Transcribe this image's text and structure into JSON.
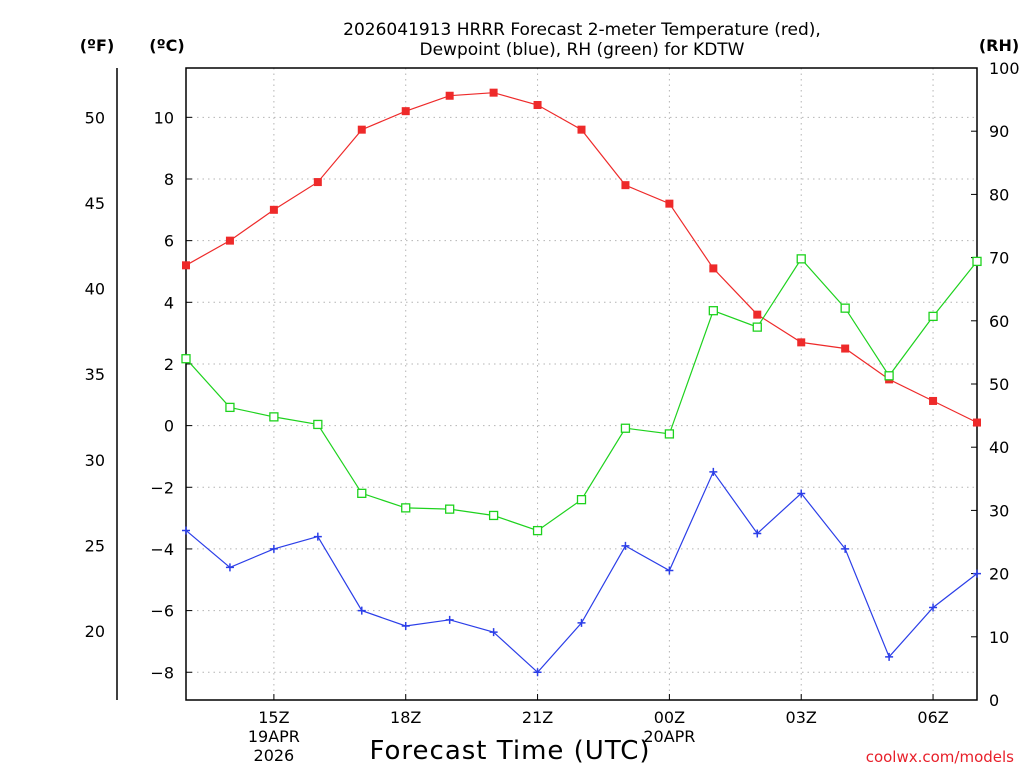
{
  "chart_data": {
    "type": "line",
    "title": [
      "2026041913 HRRR Forecast 2-meter Temperature (red),",
      "Dewpoint (blue), RH (green) for KDTW"
    ],
    "xlabel": "Forecast Time (UTC)",
    "credit": "coolwx.com/models",
    "units": {
      "fahrenheit": "(ºF)",
      "celsius": "(ºC)",
      "rh": "(RH)"
    },
    "x": [
      13,
      14,
      15,
      16,
      17,
      18,
      19,
      20,
      21,
      22,
      23,
      24,
      25,
      26,
      27,
      28,
      29,
      30,
      31
    ],
    "xlim": [
      13,
      31
    ],
    "x_ticks": [
      {
        "x": 15,
        "label": "15Z"
      },
      {
        "x": 18,
        "label": "18Z"
      },
      {
        "x": 21,
        "label": "21Z"
      },
      {
        "x": 24,
        "label": "00Z"
      },
      {
        "x": 27,
        "label": "03Z"
      },
      {
        "x": 30,
        "label": "06Z"
      }
    ],
    "date_labels": [
      {
        "x": 15,
        "lines": [
          "19APR",
          "2026"
        ]
      },
      {
        "x": 24,
        "lines": [
          "20APR"
        ]
      }
    ],
    "ylim_celsius": [
      -8.9,
      11.6
    ],
    "celsius_ticks": [
      10,
      8,
      6,
      4,
      2,
      0,
      -2,
      -4,
      -6,
      -8
    ],
    "fahrenheit_ticks": [
      50,
      45,
      40,
      35,
      30,
      25,
      20
    ],
    "ylim_rh": [
      0,
      100
    ],
    "rh_ticks": [
      100,
      90,
      80,
      70,
      60,
      50,
      40,
      30,
      20,
      10,
      0
    ],
    "grid": true,
    "series": [
      {
        "name": "Temperature",
        "axis": "celsius",
        "color": "#ee2a2a",
        "marker": "filled-square",
        "values": [
          5.2,
          6.0,
          7.0,
          7.9,
          9.6,
          10.2,
          10.7,
          10.8,
          10.4,
          9.6,
          7.8,
          7.2,
          5.1,
          3.6,
          2.7,
          2.5,
          1.5,
          0.8,
          0.1
        ]
      },
      {
        "name": "Dewpoint",
        "axis": "celsius",
        "color": "#2b3ee8",
        "marker": "plus",
        "values": [
          -3.4,
          -4.6,
          -4.0,
          -3.6,
          -6.0,
          -6.5,
          -6.3,
          -6.7,
          -8.0,
          -6.4,
          -3.9,
          -4.7,
          -1.5,
          -3.5,
          -2.2,
          -4.0,
          -7.5,
          -5.9,
          -4.8
        ]
      },
      {
        "name": "RH",
        "axis": "rh",
        "color": "#1ed21e",
        "marker": "open-square",
        "values": [
          54.0,
          46.3,
          44.8,
          43.6,
          32.7,
          30.4,
          30.2,
          29.2,
          26.8,
          31.7,
          43.0,
          42.1,
          61.6,
          59.0,
          69.8,
          62.0,
          51.3,
          60.7,
          69.4
        ]
      }
    ]
  }
}
